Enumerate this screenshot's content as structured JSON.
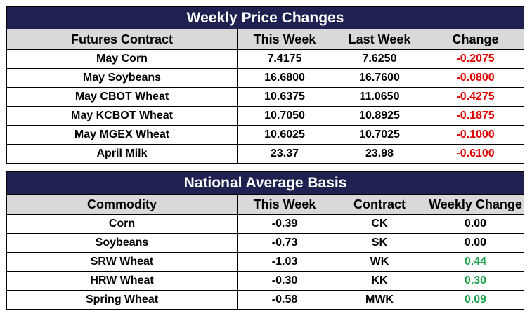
{
  "price_table": {
    "title": "Weekly Price Changes",
    "headers": [
      "Futures Contract",
      "This Week",
      "Last Week",
      "Change"
    ],
    "rows": [
      {
        "contract": "May Corn",
        "this_week": "7.4175",
        "last_week": "7.6250",
        "change": "-0.2075"
      },
      {
        "contract": "May Soybeans",
        "this_week": "16.6800",
        "last_week": "16.7600",
        "change": "-0.0800"
      },
      {
        "contract": "May CBOT Wheat",
        "this_week": "10.6375",
        "last_week": "11.0650",
        "change": "-0.4275"
      },
      {
        "contract": "May KCBOT Wheat",
        "this_week": "10.7050",
        "last_week": "10.8925",
        "change": "-0.1875"
      },
      {
        "contract": "May MGEX Wheat",
        "this_week": "10.6025",
        "last_week": "10.7025",
        "change": "-0.1000"
      },
      {
        "contract": "April Milk",
        "this_week": "23.37",
        "last_week": "23.98",
        "change": "-0.6100"
      }
    ]
  },
  "basis_table": {
    "title": "National Average Basis",
    "headers": [
      "Commodity",
      "This Week",
      "Contract",
      "Weekly Change"
    ],
    "rows": [
      {
        "commodity": "Corn",
        "this_week": "-0.39",
        "contract": "CK",
        "weekly_change": "0.00"
      },
      {
        "commodity": "Soybeans",
        "this_week": "-0.73",
        "contract": "SK",
        "weekly_change": "0.00"
      },
      {
        "commodity": "SRW Wheat",
        "this_week": "-1.03",
        "contract": "WK",
        "weekly_change": "0.44"
      },
      {
        "commodity": "HRW Wheat",
        "this_week": "-0.30",
        "contract": "KK",
        "weekly_change": "0.30"
      },
      {
        "commodity": "Spring Wheat",
        "this_week": "-0.58",
        "contract": "MWK",
        "weekly_change": "0.09"
      }
    ]
  },
  "colors": {
    "title_background": "#1f2150",
    "header_background": "#d9d9d9",
    "negative": "#e00000",
    "positive": "#1aa34a"
  }
}
